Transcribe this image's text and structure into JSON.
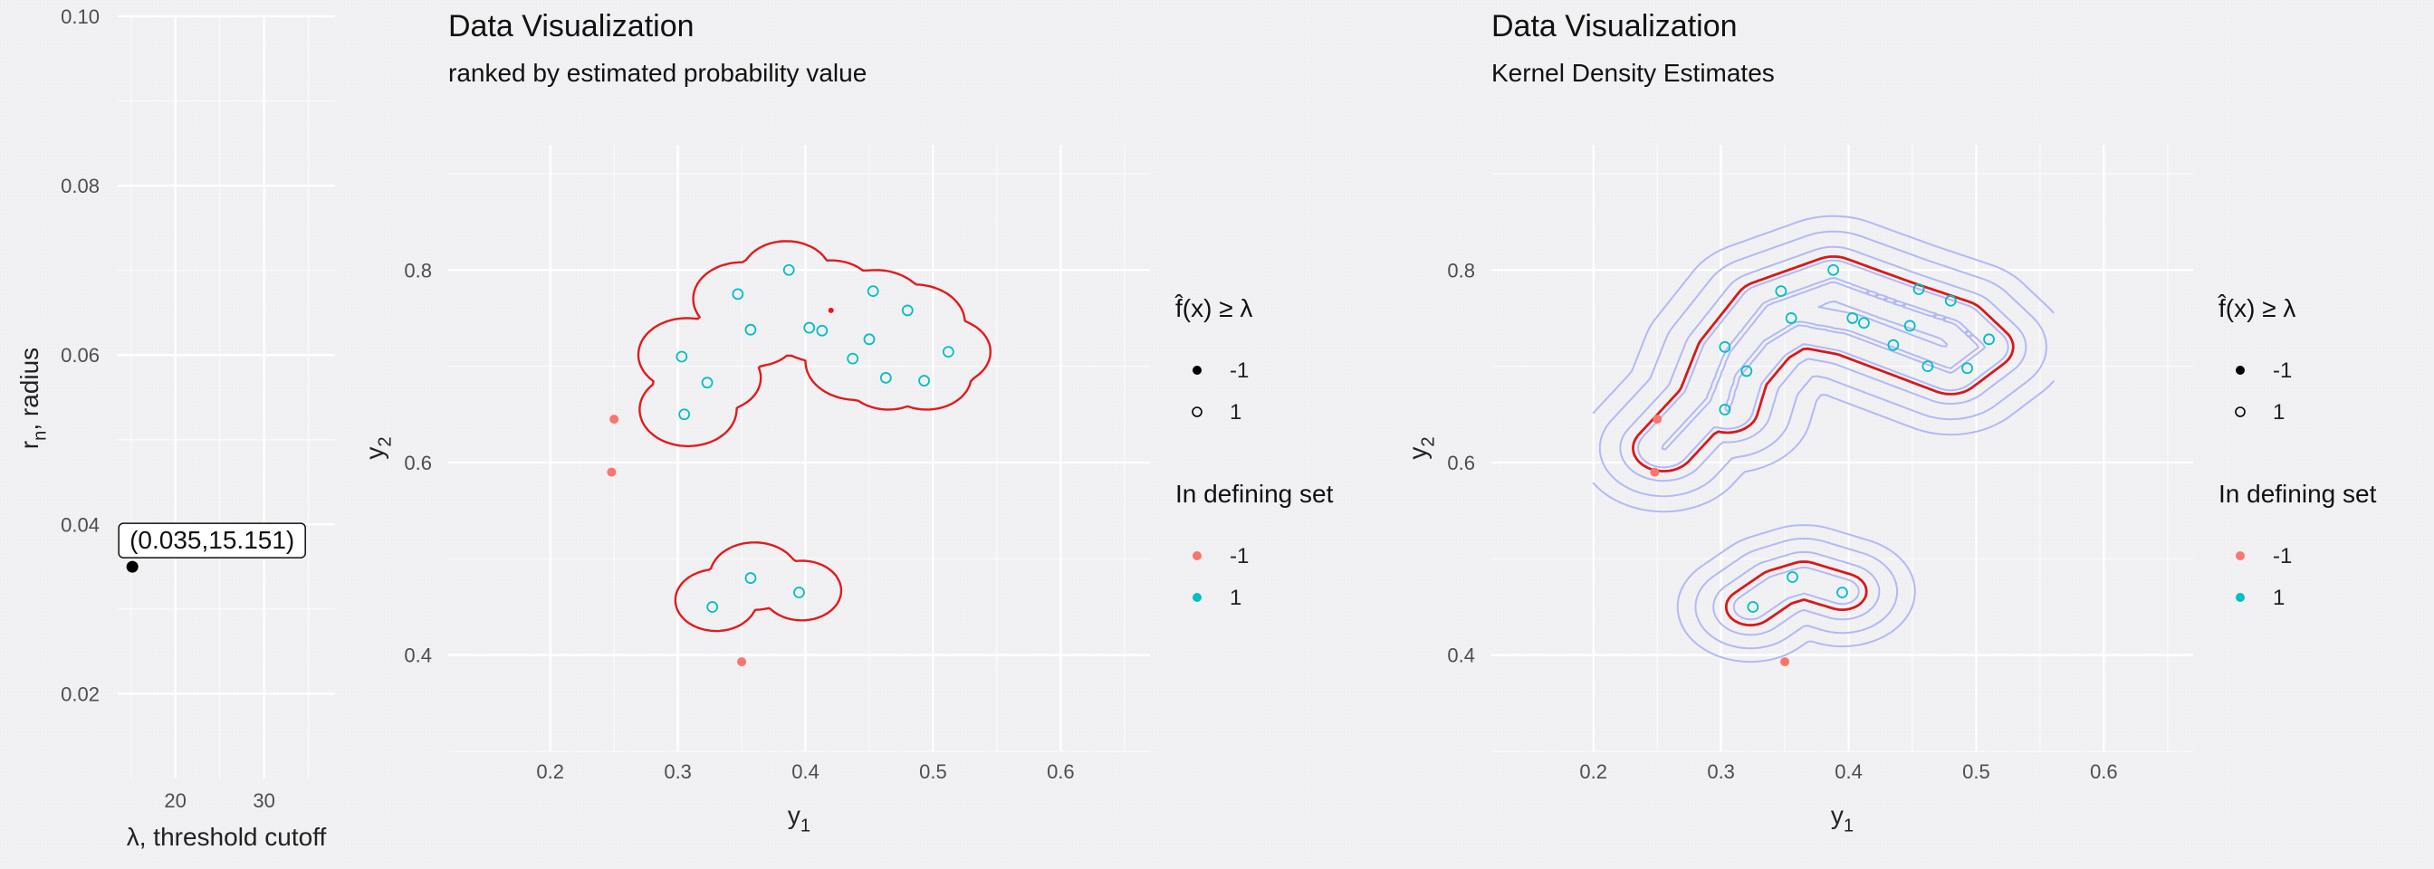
{
  "chart_data": [
    {
      "type": "scatter",
      "xlabel": "λ, threshold cutoff",
      "ylabel_main": "r",
      "ylabel_sub": "n",
      "ylabel_rest": ", radius",
      "x_ticks": [
        20,
        30
      ],
      "y_ticks": [
        0.02,
        0.04,
        0.06,
        0.08,
        0.1
      ],
      "y_tick_labels": [
        "0.02",
        "0.04",
        "0.06",
        "0.08",
        "0.10"
      ],
      "xlim": [
        13.5,
        38
      ],
      "ylim": [
        0.01,
        0.1
      ],
      "points": [
        {
          "x": 15.151,
          "y": 0.035
        }
      ],
      "annotation": "(0.035,15.151)"
    },
    {
      "type": "scatter",
      "title": "Data Visualization",
      "subtitle": "ranked by estimated probability value",
      "xlabel": "y",
      "xlabel_sub": "1",
      "ylabel": "y",
      "ylabel_sub": "2",
      "x_ticks": [
        0.2,
        0.3,
        0.4,
        0.5,
        0.6
      ],
      "y_ticks": [
        0.4,
        0.6,
        0.8
      ],
      "xlim": [
        0.12,
        0.67
      ],
      "ylim": [
        0.3,
        0.93
      ],
      "series": [
        {
          "name": "-1",
          "color": "#f8766d",
          "shape": "filled",
          "points": [
            [
              0.25,
              0.645
            ],
            [
              0.248,
              0.59
            ],
            [
              0.35,
              0.393
            ]
          ]
        },
        {
          "name": "1",
          "color": "#00bfc4",
          "shape": "open",
          "points": [
            [
              0.303,
              0.71
            ],
            [
              0.323,
              0.683
            ],
            [
              0.305,
              0.65
            ],
            [
              0.347,
              0.775
            ],
            [
              0.357,
              0.738
            ],
            [
              0.387,
              0.8
            ],
            [
              0.403,
              0.74
            ],
            [
              0.413,
              0.737
            ],
            [
              0.437,
              0.708
            ],
            [
              0.45,
              0.728
            ],
            [
              0.453,
              0.778
            ],
            [
              0.463,
              0.688
            ],
            [
              0.48,
              0.758
            ],
            [
              0.493,
              0.685
            ],
            [
              0.512,
              0.715
            ],
            [
              0.327,
              0.45
            ],
            [
              0.357,
              0.48
            ],
            [
              0.395,
              0.465
            ]
          ]
        }
      ],
      "contours": [
        {
          "color": "#e31a1c",
          "circles": [
            [
              0.307,
              0.712,
              0.038
            ],
            [
              0.33,
              0.688,
              0.035
            ],
            [
              0.308,
              0.655,
              0.038
            ],
            [
              0.35,
              0.77,
              0.038
            ],
            [
              0.36,
              0.735,
              0.035
            ],
            [
              0.385,
              0.795,
              0.035
            ],
            [
              0.41,
              0.745,
              0.04
            ],
            [
              0.44,
              0.705,
              0.04
            ],
            [
              0.455,
              0.76,
              0.04
            ],
            [
              0.485,
              0.745,
              0.04
            ],
            [
              0.495,
              0.69,
              0.035
            ],
            [
              0.51,
              0.715,
              0.035
            ],
            [
              0.465,
              0.69,
              0.035
            ],
            [
              0.42,
              0.775,
              0.035
            ],
            [
              0.375,
              0.75,
              0.035
            ]
          ]
        },
        {
          "color": "#e31a1c",
          "circles": [
            [
              0.33,
              0.457,
              0.032
            ],
            [
              0.36,
              0.482,
              0.035
            ],
            [
              0.397,
              0.467,
              0.031
            ]
          ]
        }
      ],
      "legend": {
        "shape_title": "f̂(x) ≥ λ",
        "shape_items": [
          "-1",
          "1"
        ],
        "color_title": "In defining set",
        "color_items": [
          "-1",
          "1"
        ]
      }
    },
    {
      "type": "scatter",
      "title": "Data Visualization",
      "subtitle": "Kernel Density Estimates",
      "xlabel": "y",
      "xlabel_sub": "1",
      "ylabel": "y",
      "ylabel_sub": "2",
      "x_ticks": [
        0.2,
        0.3,
        0.4,
        0.5,
        0.6
      ],
      "y_ticks": [
        0.4,
        0.6,
        0.8
      ],
      "xlim": [
        0.12,
        0.67
      ],
      "ylim": [
        0.3,
        0.93
      ],
      "series": [
        {
          "name": "-1",
          "color": "#f8766d",
          "shape": "filled",
          "points": [
            [
              0.25,
              0.645
            ],
            [
              0.248,
              0.59
            ],
            [
              0.35,
              0.393
            ]
          ]
        },
        {
          "name": "1",
          "color": "#00bfc4",
          "shape": "open",
          "points": [
            [
              0.303,
              0.72
            ],
            [
              0.32,
              0.695
            ],
            [
              0.303,
              0.655
            ],
            [
              0.347,
              0.778
            ],
            [
              0.355,
              0.75
            ],
            [
              0.388,
              0.8
            ],
            [
              0.403,
              0.75
            ],
            [
              0.412,
              0.745
            ],
            [
              0.435,
              0.722
            ],
            [
              0.448,
              0.742
            ],
            [
              0.455,
              0.78
            ],
            [
              0.462,
              0.7
            ],
            [
              0.48,
              0.768
            ],
            [
              0.493,
              0.698
            ],
            [
              0.51,
              0.728
            ],
            [
              0.325,
              0.45
            ],
            [
              0.356,
              0.481
            ],
            [
              0.395,
              0.465
            ]
          ]
        }
      ],
      "kde_contours": {
        "level_color": "#b2b9f5",
        "highlight_color": "#d7191c",
        "upper_levels": [
          -0.016,
          0.0,
          0.016,
          0.03,
          0.048
        ],
        "lower_levels": [
          -0.012,
          0.002,
          0.016,
          0.032
        ],
        "upper_highlight_offset": 0.026,
        "lower_highlight_offset": 0.026
      },
      "legend": {
        "shape_title": "f̂(x) ≥ λ",
        "shape_items": [
          "-1",
          "1"
        ],
        "color_title": "In defining set",
        "color_items": [
          "-1",
          "1"
        ]
      }
    }
  ]
}
